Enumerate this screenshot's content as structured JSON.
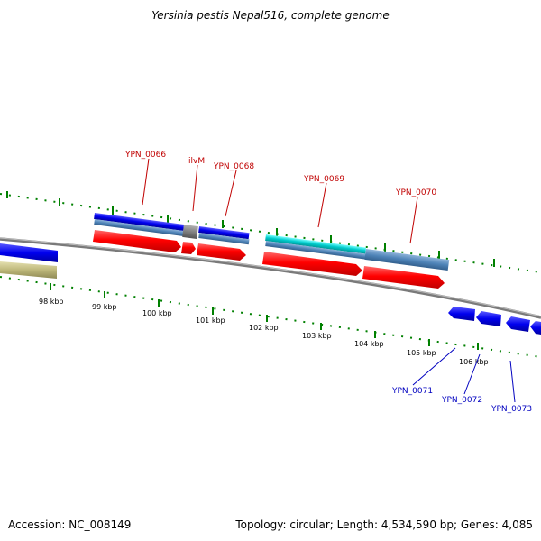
{
  "title": "Yersinia pestis Nepal516, complete genome",
  "footer": {
    "accession": "Accession: NC_008149",
    "summary": "Topology: circular; Length: 4,534,590 bp; Genes: 4,085"
  },
  "ticks": [
    "98 kbp",
    "99 kbp",
    "100 kbp",
    "101 kbp",
    "102 kbp",
    "103 kbp",
    "104 kbp",
    "105 kbp",
    "106 kbp"
  ],
  "genes_forward": [
    "YPN_0066",
    "ilvM",
    "YPN_0068",
    "YPN_0069",
    "YPN_0070"
  ],
  "genes_reverse": [
    "YPN_0071",
    "YPN_0072",
    "YPN_0073"
  ],
  "colors": {
    "cds": "#ff0000",
    "gene_blue": "#0000ee",
    "steel": "#4f84b8",
    "cyan": "#00cccc",
    "olive": "#bdb77a",
    "ticks": "#008000",
    "backbone": "#808080"
  }
}
